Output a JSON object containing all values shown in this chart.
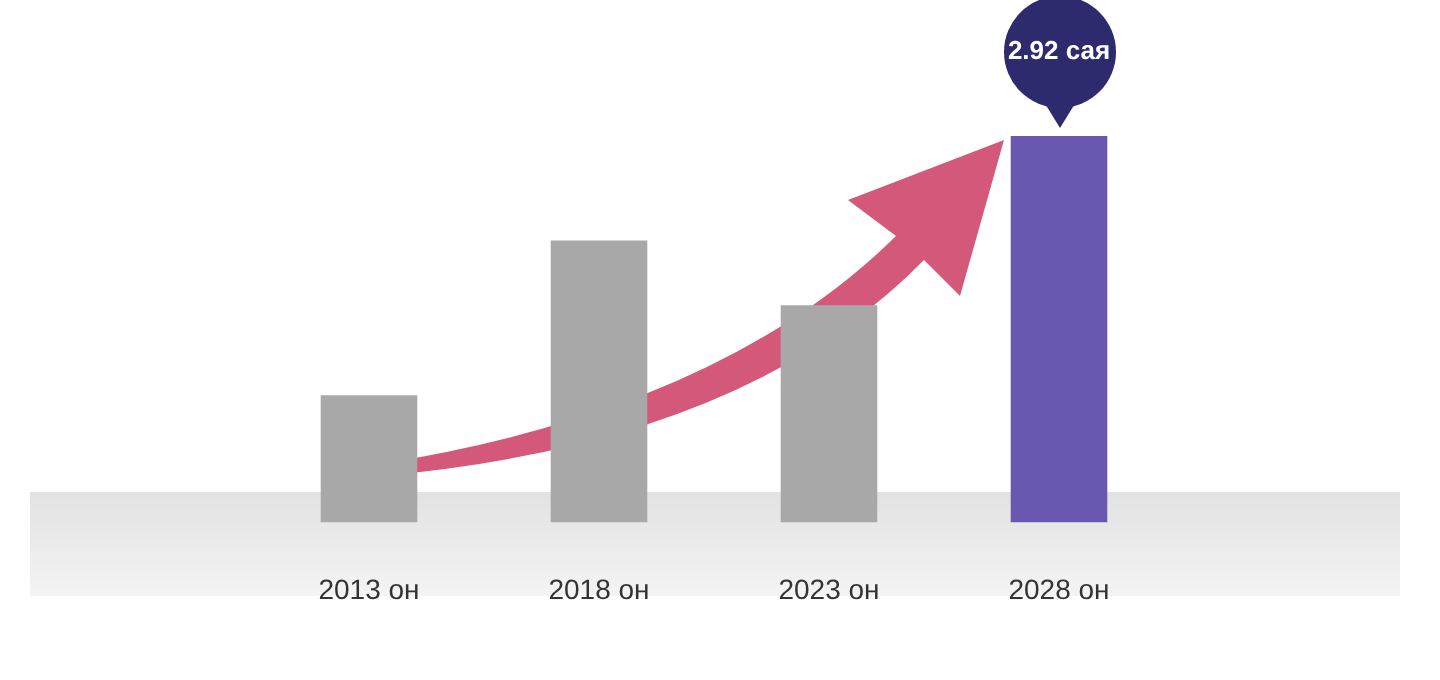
{
  "chart_data": {
    "type": "bar",
    "categories": [
      "2013 он",
      "2018 он",
      "2023 он",
      "2028 он"
    ],
    "values": [
      0.96,
      2.13,
      1.64,
      2.92
    ],
    "colors": [
      "#a8a8a8",
      "#a8a8a8",
      "#a8a8a8",
      "#6a58b0"
    ],
    "value_labels": [
      null,
      null,
      null,
      "2.92 сая"
    ],
    "tick_labels": "x",
    "grid": false,
    "legend": false
  }
}
